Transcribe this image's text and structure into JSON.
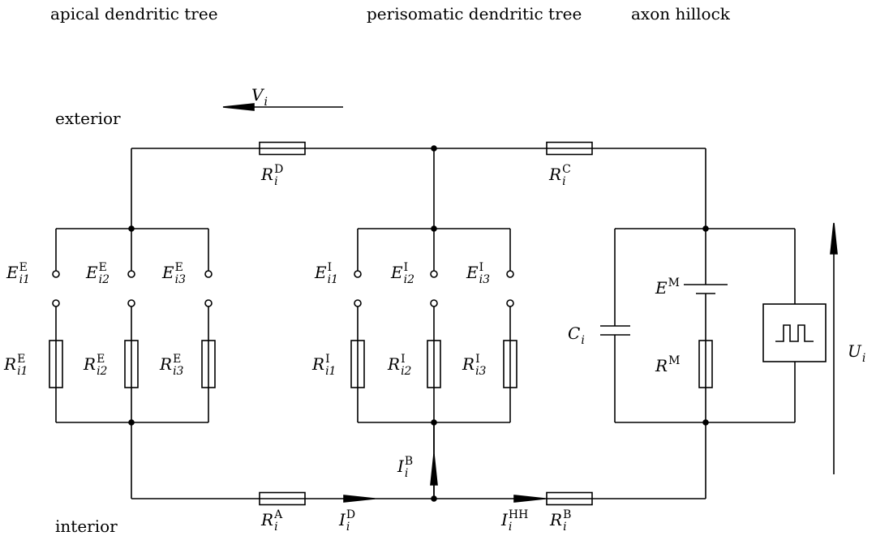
{
  "headers": [
    "apical dendritic tree",
    "perisomatic dendritic tree",
    "axon hillock"
  ],
  "regions": [
    "exterior",
    "interior"
  ],
  "labels": [
    {
      "base": "V",
      "sub": "i"
    },
    {
      "base": "R",
      "sup": "D",
      "sub": "i"
    },
    {
      "base": "R",
      "sup": "C",
      "sub": "i"
    },
    {
      "base": "E",
      "sup": "E",
      "sub": "i1"
    },
    {
      "base": "E",
      "sup": "E",
      "sub": "i2"
    },
    {
      "base": "E",
      "sup": "E",
      "sub": "i3"
    },
    {
      "base": "E",
      "sup": "I",
      "sub": "i1"
    },
    {
      "base": "E",
      "sup": "I",
      "sub": "i2"
    },
    {
      "base": "E",
      "sup": "I",
      "sub": "i3"
    },
    {
      "base": "R",
      "sup": "E",
      "sub": "i1"
    },
    {
      "base": "R",
      "sup": "E",
      "sub": "i2"
    },
    {
      "base": "R",
      "sup": "E",
      "sub": "i3"
    },
    {
      "base": "R",
      "sup": "I",
      "sub": "i1"
    },
    {
      "base": "R",
      "sup": "I",
      "sub": "i2"
    },
    {
      "base": "R",
      "sup": "I",
      "sub": "i3"
    },
    {
      "base": "C",
      "sub": "i"
    },
    {
      "base": "E",
      "sup": "M"
    },
    {
      "base": "R",
      "sup": "M"
    },
    {
      "base": "U",
      "sub": "i"
    },
    {
      "base": "I",
      "sup": "B",
      "sub": "i"
    },
    {
      "base": "R",
      "sup": "A",
      "sub": "i"
    },
    {
      "base": "I",
      "sup": "D",
      "sub": "i"
    },
    {
      "base": "I",
      "sup": "HH",
      "sub": "i"
    },
    {
      "base": "R",
      "sup": "B",
      "sub": "i"
    }
  ]
}
